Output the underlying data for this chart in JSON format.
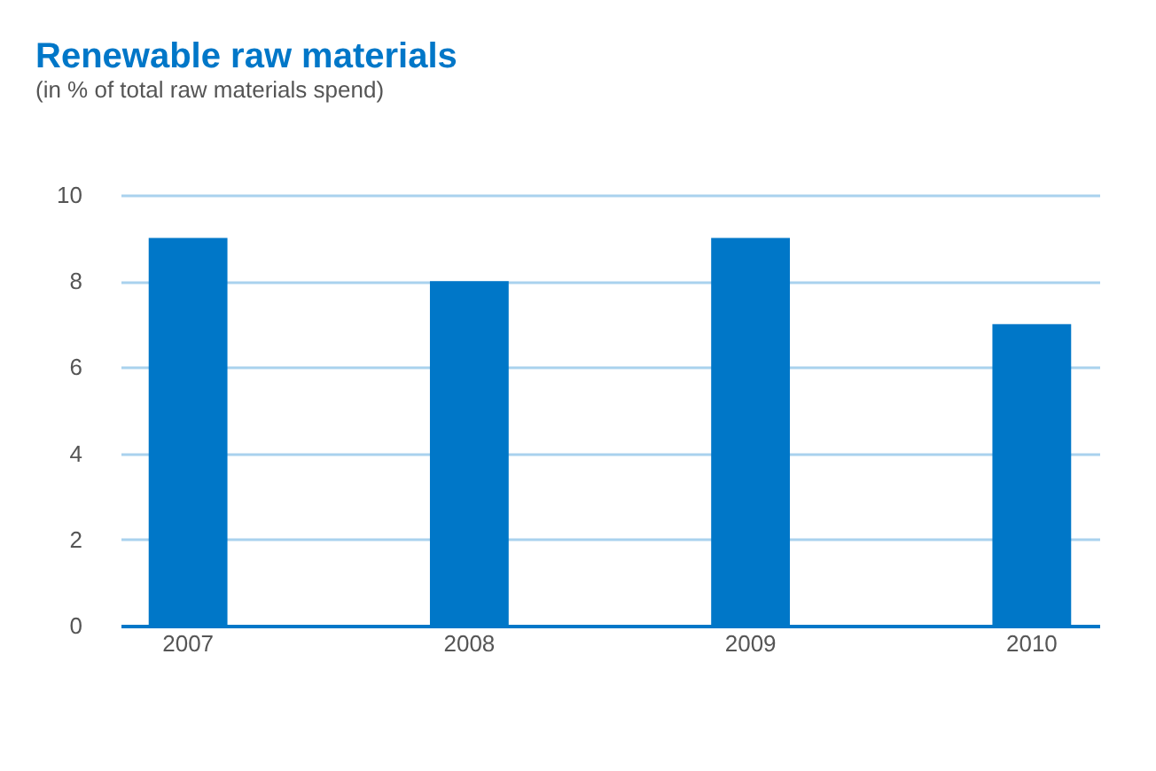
{
  "chart_data": {
    "type": "bar",
    "title": "Renewable raw materials",
    "subtitle": "(in % of total raw materials spend)",
    "categories": [
      "2007",
      "2008",
      "2009",
      "2010"
    ],
    "values": [
      9,
      8,
      9,
      7
    ],
    "color": "#0077c8",
    "ylim": [
      0,
      10
    ],
    "yticks": [
      0,
      2,
      4,
      6,
      8,
      10
    ],
    "grid": "y"
  }
}
